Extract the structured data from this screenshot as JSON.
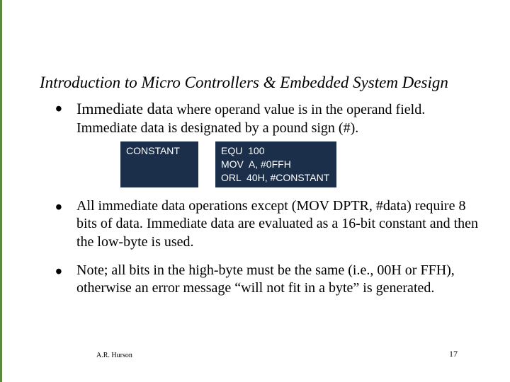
{
  "colors": {
    "accent": "#5a8a3a",
    "codebox_bg": "#1b2f4a",
    "codebox_fg": "#ffffff",
    "text": "#000000",
    "background": "#ffffff"
  },
  "title": "Introduction to Micro Controllers & Embedded System Design",
  "bullets": [
    {
      "lead": "Immediate data",
      "rest": " where operand value is in the operand field. Immediate data is designated by a pound sign (#).",
      "code": {
        "left": "CONSTANT",
        "right": "EQU  100\nMOV  A, #0FFH\nORL  40H, #CONSTANT"
      }
    },
    {
      "text": "All immediate data operations except (MOV   DPTR, #data) require 8 bits of data.  Immediate data are evaluated as a 16-bit constant and then the low-byte is used."
    },
    {
      "text": "Note; all bits in the high-byte must be the same (i.e., 00H or FFH), otherwise an error message “will not fit in a byte” is generated."
    }
  ],
  "footer": {
    "author": "A.R. Hurson",
    "page": "17"
  }
}
